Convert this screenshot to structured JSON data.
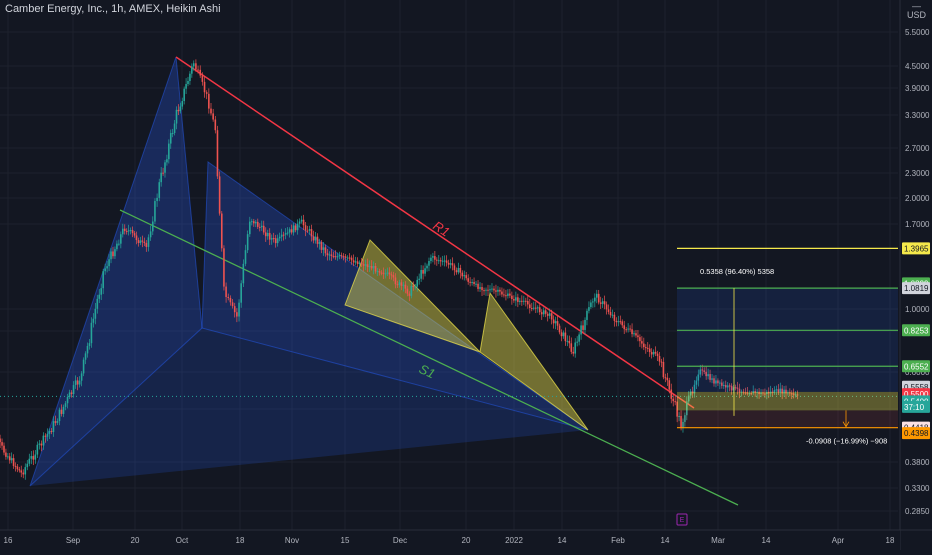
{
  "header": {
    "title": "Camber Energy, Inc., 1h, AMEX, Heikin Ashi"
  },
  "currency": {
    "code": "USD",
    "top_mark": "—"
  },
  "chart_data": {
    "type": "candlestick",
    "price_scale": "log",
    "y_ticks": [
      "5.5000",
      "4.5000",
      "3.9000",
      "3.3000",
      "2.7000",
      "2.3000",
      "2.0000",
      "1.7000",
      "1.0000",
      "0.9000",
      "0.6000",
      "0.4000",
      "0.3800",
      "0.3300",
      "0.2850"
    ],
    "x_ticks": [
      "16",
      "Sep",
      "20",
      "Oct",
      "18",
      "Nov",
      "15",
      "Dec",
      "20",
      "2022",
      "14",
      "Feb",
      "14",
      "Mar",
      "14",
      "Apr",
      "18"
    ],
    "price_path": [
      {
        "date": "Aug 11",
        "price": 0.47
      },
      {
        "date": "Aug 16",
        "price": 0.38
      },
      {
        "date": "Aug 20",
        "price": 0.33
      },
      {
        "date": "Aug 27",
        "price": 0.44
      },
      {
        "date": "Sep 3",
        "price": 0.62
      },
      {
        "date": "Sep 8",
        "price": 1.2
      },
      {
        "date": "Sep 13",
        "price": 1.6
      },
      {
        "date": "Sep 18",
        "price": 1.4
      },
      {
        "date": "Sep 21",
        "price": 2.1
      },
      {
        "date": "Sep 25",
        "price": 3.3
      },
      {
        "date": "Sep 29",
        "price": 4.6
      },
      {
        "date": "Oct 2",
        "price": 3.7
      },
      {
        "date": "Oct 4",
        "price": 3.0
      },
      {
        "date": "Oct 6",
        "price": 1.05
      },
      {
        "date": "Oct 9",
        "price": 0.9
      },
      {
        "date": "Oct 12",
        "price": 1.7
      },
      {
        "date": "Oct 18",
        "price": 1.45
      },
      {
        "date": "Oct 24",
        "price": 1.65
      },
      {
        "date": "Oct 30",
        "price": 1.35
      },
      {
        "date": "Nov 6",
        "price": 1.28
      },
      {
        "date": "Nov 12",
        "price": 1.2
      },
      {
        "date": "Nov 18",
        "price": 1.05
      },
      {
        "date": "Nov 23",
        "price": 1.32
      },
      {
        "date": "Nov 28",
        "price": 1.25
      },
      {
        "date": "Dec 3",
        "price": 1.1
      },
      {
        "date": "Dec 9",
        "price": 1.05
      },
      {
        "date": "Dec 15",
        "price": 0.98
      },
      {
        "date": "Dec 21",
        "price": 0.9
      },
      {
        "date": "Dec 26",
        "price": 0.72
      },
      {
        "date": "Dec 31",
        "price": 1.04
      },
      {
        "date": "Jan 5",
        "price": 0.88
      },
      {
        "date": "Jan 10",
        "price": 0.78
      },
      {
        "date": "Jan 15",
        "price": 0.68
      },
      {
        "date": "Jan 20",
        "price": 0.45
      },
      {
        "date": "Jan 24",
        "price": 0.64
      },
      {
        "date": "Jan 29",
        "price": 0.58
      },
      {
        "date": "Feb 3",
        "price": 0.56
      },
      {
        "date": "Feb 8",
        "price": 0.55
      },
      {
        "date": "Feb 12",
        "price": 0.56
      },
      {
        "date": "Feb 16",
        "price": 0.54
      }
    ],
    "trend_lines": [
      {
        "name": "R1",
        "color": "#f23645"
      },
      {
        "name": "S1",
        "color": "#4caf50"
      }
    ],
    "horizontal_lines": [
      {
        "price": 1.3965,
        "color": "#f5e94b"
      },
      {
        "price": 1.0819,
        "color": "#4caf50"
      },
      {
        "price": 0.8253,
        "color": "#4caf50"
      },
      {
        "price": 0.6552,
        "color": "#4caf50"
      },
      {
        "price": 0.4418,
        "color": "#ff9800"
      }
    ],
    "measure": {
      "up_label": "0.5358 (96.40%) 5358",
      "down_label": "-0.0908 (−16.99%) −908"
    },
    "price_labels": [
      {
        "text": "1.3965",
        "bg": "#f5e94b",
        "fg": "#131722",
        "price": 1.3965
      },
      {
        "text": "1.0899",
        "bg": "#4caf50",
        "fg": "#ffffff",
        "price": 1.115
      },
      {
        "text": "1.0819",
        "bg": "#d1d4dc",
        "fg": "#131722",
        "price": 1.0819
      },
      {
        "text": "0.8253",
        "bg": "#4caf50",
        "fg": "#ffffff",
        "price": 0.8253
      },
      {
        "text": "0.6552",
        "bg": "#4caf50",
        "fg": "#ffffff",
        "price": 0.6552
      },
      {
        "text": "0.5558",
        "bg": "#d1d4dc",
        "fg": "#131722",
        "price": 0.5745
      },
      {
        "text": "0.5500",
        "bg": "#f23645",
        "fg": "#ffffff",
        "price": 0.548
      },
      {
        "text": "0.5400",
        "bg": "#26a69a",
        "fg": "#ffffff",
        "price": 0.523
      },
      {
        "text": "37:10",
        "bg": "#26a69a",
        "fg": "#ffffff",
        "price": 0.505
      },
      {
        "text": "0.4418",
        "bg": "#fbe0e3",
        "fg": "#131722",
        "price": 0.4418
      },
      {
        "text": "0.4398",
        "bg": "#ff9800",
        "fg": "#131722",
        "price": 0.4265
      }
    ],
    "event_marker": {
      "text": "E",
      "color": "#9c27b0",
      "date": "Feb 16"
    }
  }
}
